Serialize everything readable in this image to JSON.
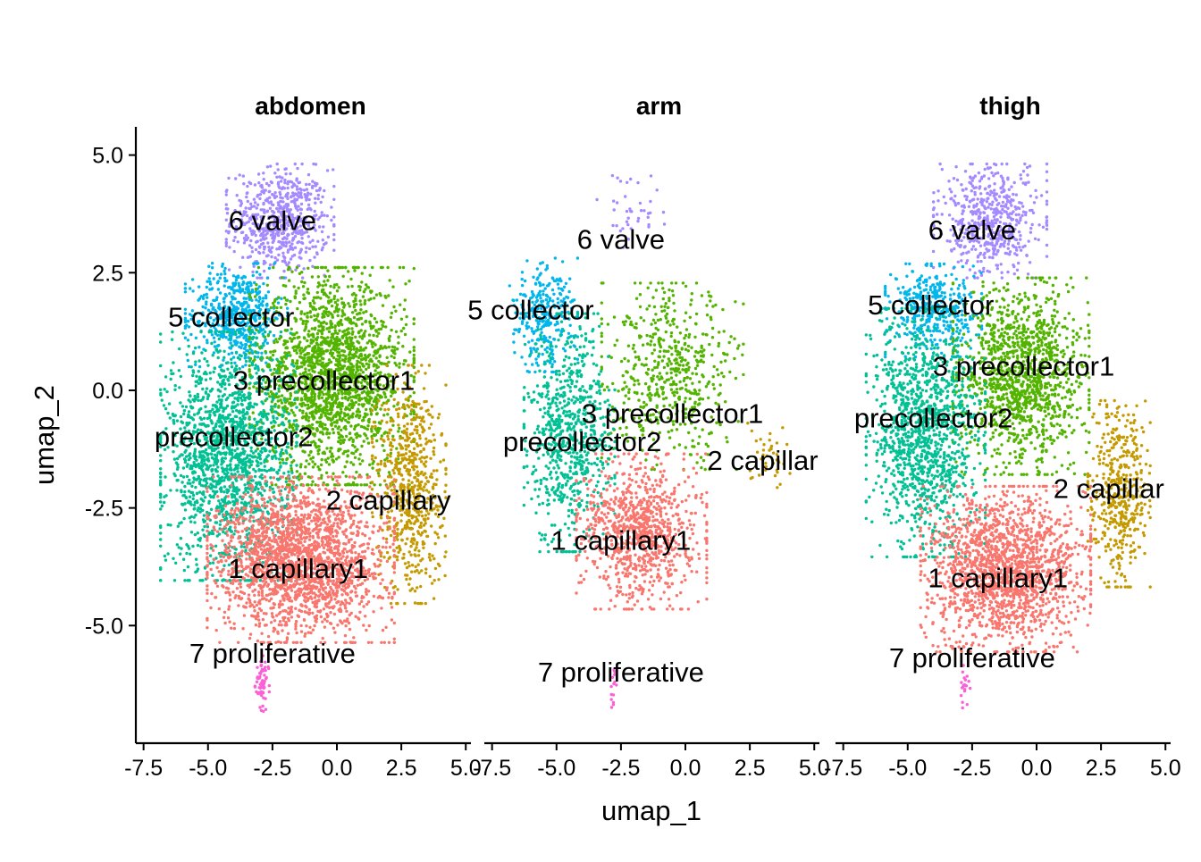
{
  "chart_data": {
    "type": "scatter",
    "xlabel": "umap_1",
    "ylabel": "umap_2",
    "xlim": [
      -7.8,
      5.2
    ],
    "ylim": [
      -7.5,
      5.6
    ],
    "x_ticks": [
      "-7.5",
      "-5.0",
      "-2.5",
      "0.0",
      "2.5",
      "5.0"
    ],
    "y_ticks": [
      "5.0",
      "2.5",
      "0.0",
      "-2.5",
      "-5.0"
    ],
    "clusters": [
      {
        "id": "1",
        "name": "1 capillary1",
        "color": "#F8766D"
      },
      {
        "id": "2",
        "name": "2 capillary",
        "color": "#C49A00"
      },
      {
        "id": "3",
        "name": "3 precollector1",
        "color": "#53B400"
      },
      {
        "id": "4",
        "name": "precollector2",
        "color": "#00C094"
      },
      {
        "id": "5",
        "name": "5 collector",
        "color": "#00B6EB"
      },
      {
        "id": "6",
        "name": "6 valve",
        "color": "#A58AFF"
      },
      {
        "id": "7",
        "name": "7 proliferative",
        "color": "#FB61D7"
      }
    ],
    "facets": [
      {
        "title": "abdomen",
        "labels": [
          {
            "text": "6 valve",
            "x": -2.5,
            "y": 3.6
          },
          {
            "text": "5 collector",
            "x": -4.1,
            "y": 1.55
          },
          {
            "text": "3 precollector1",
            "x": -0.5,
            "y": 0.2
          },
          {
            "text": "precollector2",
            "x": -4.0,
            "y": -1.0
          },
          {
            "text": "2 capillary",
            "x": 2.0,
            "y": -2.35
          },
          {
            "text": "1 capillary1",
            "x": -1.5,
            "y": -3.8
          },
          {
            "text": "7 proliferative",
            "x": -2.5,
            "y": -5.6
          }
        ],
        "regions": [
          {
            "cluster": "6",
            "cx": -2.2,
            "cy": 3.6,
            "rx": 1.9,
            "ry": 1.1,
            "n": 650
          },
          {
            "cluster": "5",
            "cx": -3.9,
            "cy": 1.6,
            "rx": 1.8,
            "ry": 1.0,
            "n": 550
          },
          {
            "cluster": "3",
            "cx": -0.2,
            "cy": 0.3,
            "rx": 2.9,
            "ry": 2.1,
            "n": 2000
          },
          {
            "cluster": "4",
            "cx": -4.2,
            "cy": -1.4,
            "rx": 2.4,
            "ry": 2.4,
            "n": 1700
          },
          {
            "cluster": "2",
            "cx": 2.8,
            "cy": -2.0,
            "rx": 1.3,
            "ry": 2.3,
            "n": 650
          },
          {
            "cluster": "1",
            "cx": -1.4,
            "cy": -3.6,
            "rx": 3.3,
            "ry": 1.6,
            "n": 2100
          },
          {
            "cluster": "7",
            "cx": -2.9,
            "cy": -6.3,
            "rx": 0.25,
            "ry": 0.6,
            "n": 60
          }
        ]
      },
      {
        "title": "arm",
        "labels": [
          {
            "text": "6 valve",
            "x": -2.5,
            "y": 3.2
          },
          {
            "text": "5 collector",
            "x": -6.0,
            "y": 1.7
          },
          {
            "text": "3 precollector1",
            "x": -0.5,
            "y": -0.5
          },
          {
            "text": "precollector2",
            "x": -4.0,
            "y": -1.1
          },
          {
            "text": "2 capillar",
            "x": 3.0,
            "y": -1.5
          },
          {
            "text": "1 capillary1",
            "x": -2.5,
            "y": -3.2
          },
          {
            "text": "7 proliferative",
            "x": -2.5,
            "y": -6.0
          }
        ],
        "regions": [
          {
            "cluster": "6",
            "cx": -2.0,
            "cy": 3.8,
            "rx": 1.3,
            "ry": 0.8,
            "n": 40
          },
          {
            "cluster": "5",
            "cx": -5.5,
            "cy": 1.6,
            "rx": 1.2,
            "ry": 1.1,
            "n": 300
          },
          {
            "cluster": "3",
            "cx": -0.5,
            "cy": 0.3,
            "rx": 2.5,
            "ry": 1.8,
            "n": 550
          },
          {
            "cluster": "4",
            "cx": -4.5,
            "cy": -0.9,
            "rx": 1.6,
            "ry": 2.3,
            "n": 750
          },
          {
            "cluster": "2",
            "cx": 3.3,
            "cy": -1.4,
            "rx": 0.8,
            "ry": 0.7,
            "n": 40
          },
          {
            "cluster": "1",
            "cx": -1.7,
            "cy": -3.0,
            "rx": 2.3,
            "ry": 1.5,
            "n": 900
          },
          {
            "cluster": "7",
            "cx": -2.8,
            "cy": -6.3,
            "rx": 0.15,
            "ry": 0.4,
            "n": 15
          }
        ]
      },
      {
        "title": "thigh",
        "labels": [
          {
            "text": "6 valve",
            "x": -2.5,
            "y": 3.4
          },
          {
            "text": "5 collector",
            "x": -4.1,
            "y": 1.8
          },
          {
            "text": "3 precollector1",
            "x": -0.5,
            "y": 0.5
          },
          {
            "text": "precollector2",
            "x": -4.0,
            "y": -0.6
          },
          {
            "text": "2 capillar",
            "x": 2.8,
            "y": -2.1
          },
          {
            "text": "1 capillary1",
            "x": -1.5,
            "y": -4.0
          },
          {
            "text": "7 proliferative",
            "x": -2.5,
            "y": -5.7
          }
        ],
        "regions": [
          {
            "cluster": "6",
            "cx": -1.8,
            "cy": 3.6,
            "rx": 2.0,
            "ry": 1.1,
            "n": 550
          },
          {
            "cluster": "5",
            "cx": -4.0,
            "cy": 1.7,
            "rx": 1.7,
            "ry": 0.9,
            "n": 400
          },
          {
            "cluster": "3",
            "cx": -0.6,
            "cy": 0.3,
            "rx": 2.4,
            "ry": 1.9,
            "n": 1300
          },
          {
            "cluster": "4",
            "cx": -4.3,
            "cy": -0.9,
            "rx": 2.1,
            "ry": 2.4,
            "n": 1300
          },
          {
            "cluster": "2",
            "cx": 3.2,
            "cy": -2.2,
            "rx": 1.1,
            "ry": 1.8,
            "n": 450
          },
          {
            "cluster": "1",
            "cx": -1.2,
            "cy": -3.8,
            "rx": 3.0,
            "ry": 1.6,
            "n": 1700
          },
          {
            "cluster": "7",
            "cx": -2.8,
            "cy": -6.2,
            "rx": 0.2,
            "ry": 0.5,
            "n": 20
          }
        ]
      }
    ]
  }
}
